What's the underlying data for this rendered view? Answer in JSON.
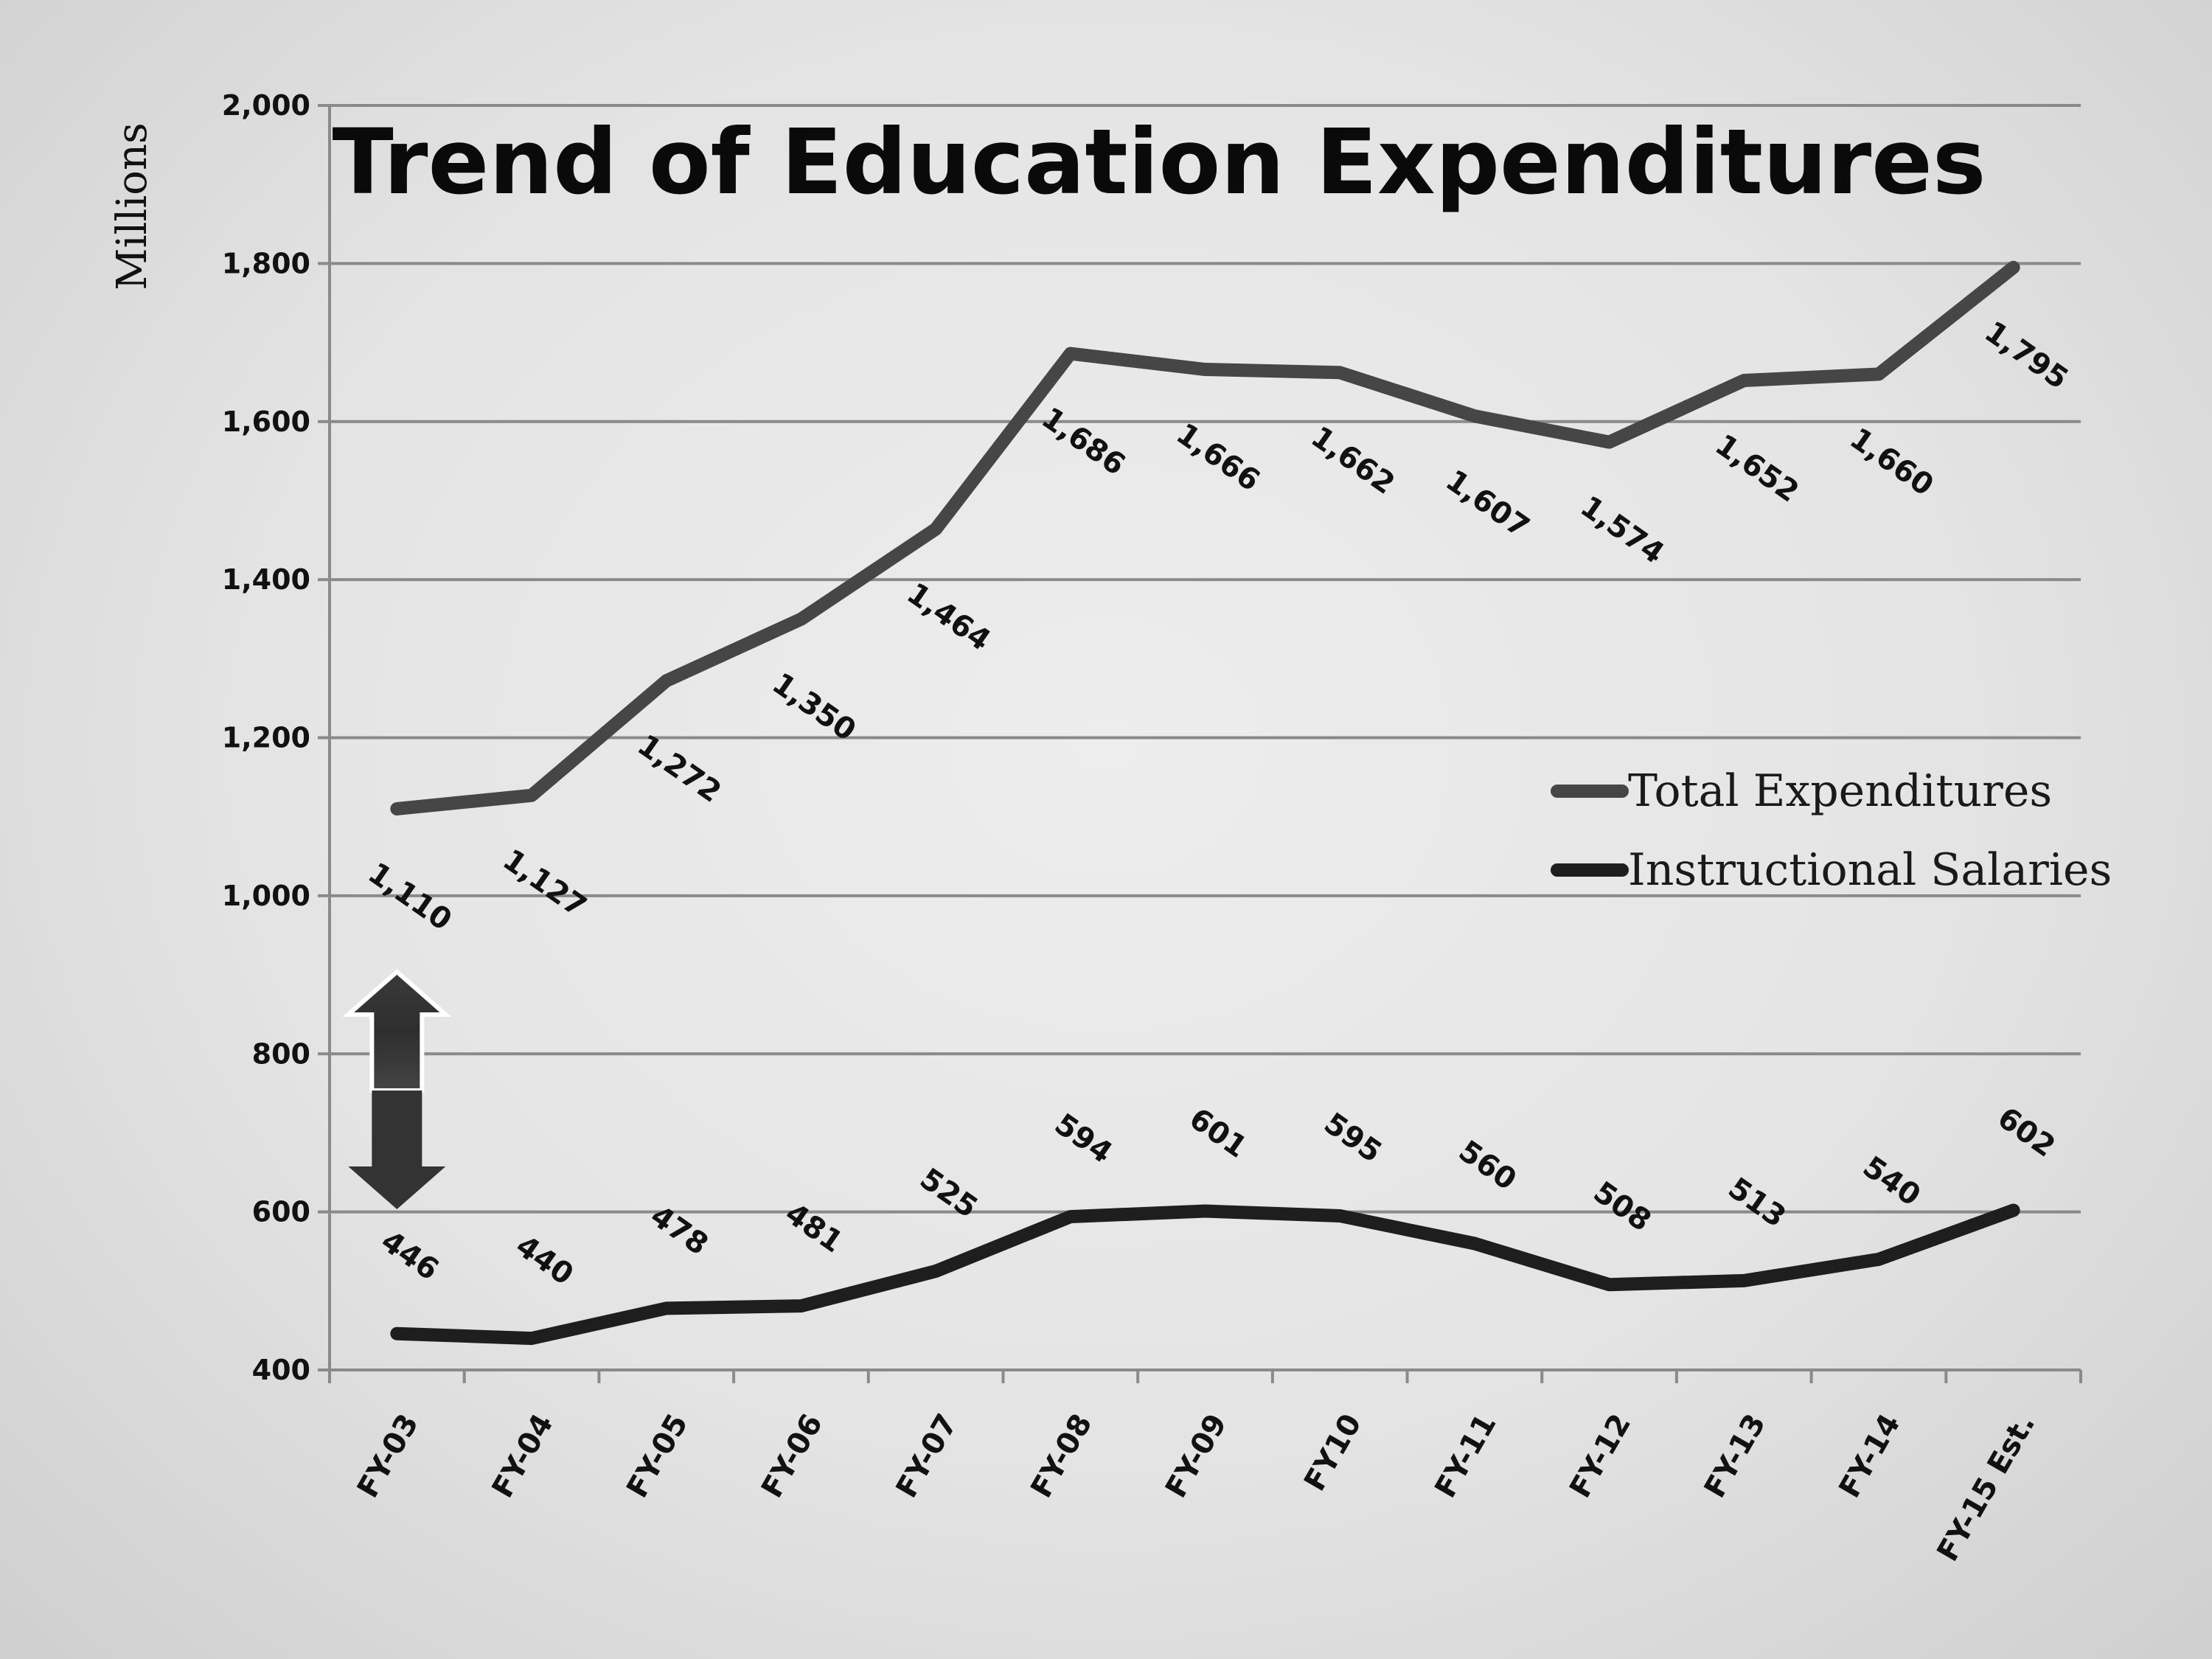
{
  "chart_data": {
    "type": "line",
    "title": "Trend of Education Expenditures",
    "ylabel": "Millions",
    "xlabel": "",
    "ylim": [
      400,
      2000
    ],
    "yticks": [
      400,
      600,
      800,
      1000,
      1200,
      1400,
      1600,
      1800,
      2000
    ],
    "ytick_labels": [
      "400",
      "600",
      "800",
      "1,000",
      "1,200",
      "1,400",
      "1,600",
      "1,800",
      "2,000"
    ],
    "categories": [
      "FY-03",
      "FY-04",
      "FY-05",
      "FY-06",
      "FY-07",
      "FY-08",
      "FY-09",
      "FY10",
      "FY-11",
      "FY-12",
      "FY-13",
      "FY-14",
      "FY-15 Est."
    ],
    "grid": true,
    "legend_position": "right",
    "series": [
      {
        "name": "Total Expenditures",
        "color": "#464646",
        "values": [
          1110,
          1127,
          1272,
          1350,
          1464,
          1686,
          1666,
          1662,
          1607,
          1574,
          1652,
          1660,
          1795
        ],
        "labels": [
          "1,110",
          "1,127",
          "1,272",
          "1,350",
          "1,464",
          "1,686",
          "1,666",
          "1,662",
          "1,607",
          "1,574",
          "1,652",
          "1,660",
          "1,795"
        ]
      },
      {
        "name": "Instructional Salaries",
        "color": "#1e1e1e",
        "values": [
          446,
          440,
          478,
          481,
          525,
          594,
          601,
          595,
          560,
          508,
          513,
          540,
          602
        ],
        "labels": [
          "446",
          "440",
          "478",
          "481",
          "525",
          "594",
          "601",
          "595",
          "560",
          "508",
          "513",
          "540",
          "602"
        ]
      }
    ],
    "annotations": [
      {
        "type": "double-arrow",
        "at_category": "FY-03",
        "between_series": [
          "Total Expenditures",
          "Instructional Salaries"
        ]
      }
    ]
  }
}
